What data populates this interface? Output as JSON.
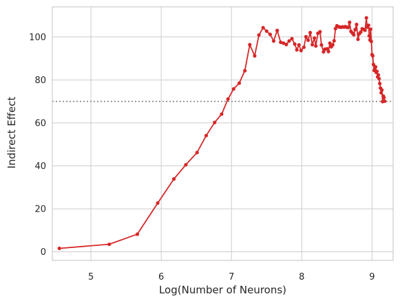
{
  "chart_data": {
    "type": "line",
    "title": "",
    "xlabel": "Log(Number of Neurons)",
    "ylabel": "Indirect Effect",
    "xlim": [
      4.45,
      9.3
    ],
    "ylim": [
      -4,
      114
    ],
    "xticks": [
      5,
      6,
      7,
      8,
      9
    ],
    "yticks": [
      0,
      20,
      40,
      60,
      80,
      100
    ],
    "grid": true,
    "colors": {
      "line": "#d62728",
      "reference": "#808080",
      "grid": "#cccccc",
      "frame": "#cccccc"
    },
    "reference_line": {
      "y": 70,
      "style": "dotted"
    },
    "series": [
      {
        "x": [
          4.55,
          5.26,
          5.66,
          5.95,
          6.18,
          6.35,
          6.51,
          6.64,
          6.76,
          6.86,
          6.95,
          7.03,
          7.11,
          7.19,
          7.26,
          7.33,
          7.39,
          7.45,
          7.5,
          7.55,
          7.6,
          7.65,
          7.7,
          7.74,
          7.78,
          7.82,
          7.86,
          7.9,
          7.93,
          7.96,
          7.99,
          8.03,
          8.06,
          8.09,
          8.12,
          8.15,
          8.18,
          8.2,
          8.23,
          8.26,
          8.28,
          8.31,
          8.33,
          8.36,
          8.38,
          8.4,
          8.42,
          8.44,
          8.46,
          8.48,
          8.5,
          8.52,
          8.54,
          8.56,
          8.58,
          8.6,
          8.62,
          8.64,
          8.66,
          8.68,
          8.7,
          8.72,
          8.74,
          8.76,
          8.78,
          8.8,
          8.82,
          8.84,
          8.86,
          8.88,
          8.9,
          8.92,
          8.93,
          8.95,
          8.96,
          8.97,
          8.98,
          8.99,
          9.0,
          9.01,
          9.02,
          9.03,
          9.04,
          9.05,
          9.06,
          9.07,
          9.08,
          9.09,
          9.1,
          9.11,
          9.12,
          9.13,
          9.14,
          9.15,
          9.16,
          9.17,
          9.18
        ],
        "y": [
          1.6,
          3.5,
          8.2,
          22.7,
          33.9,
          40.5,
          46.2,
          54.1,
          60.2,
          64.1,
          71.1,
          75.8,
          78.5,
          84.3,
          96.4,
          91.2,
          100.9,
          104.3,
          102.7,
          101.2,
          98.1,
          103.0,
          97.5,
          97.1,
          96.5,
          98.1,
          99.2,
          96.7,
          94.0,
          96.3,
          93.7,
          95.2,
          100.1,
          98.5,
          102.0,
          96.4,
          99.5,
          95.8,
          101.7,
          102.4,
          96.3,
          93.1,
          94.3,
          94.5,
          93.2,
          97.1,
          95.4,
          96.3,
          98.2,
          103.9,
          105.2,
          104.8,
          104.6,
          104.5,
          104.7,
          104.6,
          104.8,
          104.5,
          104.4,
          106.8,
          102.6,
          101.8,
          101.0,
          103.4,
          105.8,
          98.9,
          101.5,
          102.3,
          103.8,
          103.5,
          103.1,
          108.9,
          104.6,
          105.4,
          100.5,
          98.6,
          103.6,
          97.9,
          91.8,
          91.2,
          87.2,
          84.4,
          85.4,
          86.1,
          83.5,
          84.0,
          81.4,
          82.3,
          80.6,
          78.3,
          76.2,
          74.0,
          75.3,
          69.9,
          72.5,
          71.8,
          70.1
        ]
      }
    ]
  }
}
